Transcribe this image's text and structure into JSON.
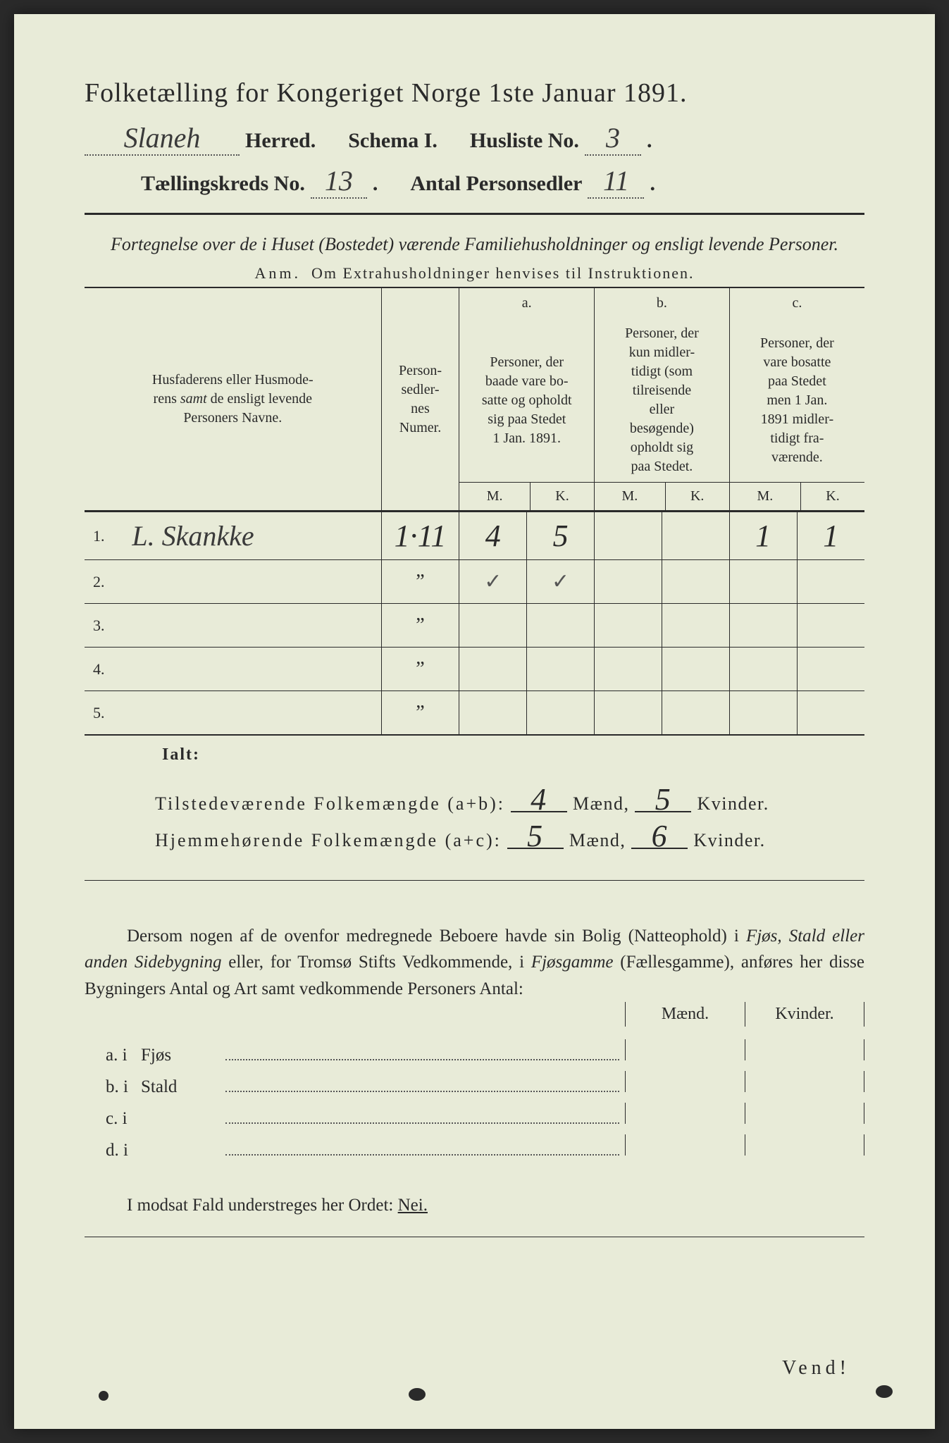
{
  "header": {
    "title": "Folketælling for Kongeriget Norge 1ste Januar 1891.",
    "herred_hw": "Slaneh",
    "herred_label": "Herred.",
    "schema_label": "Schema I.",
    "husliste_label": "Husliste No.",
    "husliste_no": "3",
    "kreds_label": "Tællingskreds No.",
    "kreds_no": "13",
    "antal_label": "Antal Personsedler",
    "antal_no": "11"
  },
  "intro": {
    "line": "Fortegnelse over de i Huset (Bostedet) værende Familiehusholdninger og ensligt levende Personer.",
    "anm_prefix": "Anm.",
    "anm": "Om Extrahusholdninger henvises til Instruktionen."
  },
  "table": {
    "col_name": "Husfaderens eller Husmoderens samt de ensligt levende Personers Navne.",
    "col_num": "Person-sedler-nes Numer.",
    "a_letter": "a.",
    "a_text": "Personer, der baade vare bo-satte og opholdt sig paa Stedet 1 Jan. 1891.",
    "b_letter": "b.",
    "b_text": "Personer, der kun midler-tidigt (som tilreisende eller besøgende) opholdt sig paa Stedet.",
    "c_letter": "c.",
    "c_text": "Personer, der vare bosatte paa Stedet men 1 Jan. 1891 midler-tidigt fra-værende.",
    "m": "M.",
    "k": "K.",
    "rows": [
      {
        "n": "1.",
        "name": "L. Skankke",
        "num": "1·11",
        "am": "4",
        "ak": "5",
        "bm": "",
        "bk": "",
        "cm": "1",
        "ck": "1"
      },
      {
        "n": "2.",
        "name": "",
        "num": "”",
        "am": "✓",
        "ak": "✓",
        "bm": "",
        "bk": "",
        "cm": "",
        "ck": ""
      },
      {
        "n": "3.",
        "name": "",
        "num": "”",
        "am": "",
        "ak": "",
        "bm": "",
        "bk": "",
        "cm": "",
        "ck": ""
      },
      {
        "n": "4.",
        "name": "",
        "num": "”",
        "am": "",
        "ak": "",
        "bm": "",
        "bk": "",
        "cm": "",
        "ck": ""
      },
      {
        "n": "5.",
        "name": "",
        "num": "”",
        "am": "",
        "ak": "",
        "bm": "",
        "bk": "",
        "cm": "",
        "ck": ""
      }
    ]
  },
  "totals": {
    "lalt": "Ialt:",
    "line1_label": "Tilstedeværende Folkemængde (a+b):",
    "line1_m": "4",
    "line1_k": "5",
    "line2_label": "Hjemmehørende Folkemængde (a+c):",
    "line2_m": "5",
    "line2_k": "6",
    "maend": "Mænd,",
    "kvinder": "Kvinder."
  },
  "paragraph": "Dersom nogen af de ovenfor medregnede Beboere havde sin Bolig (Natteophold) i Fjøs, Stald eller anden Sidebygning eller, for Tromsø Stifts Vedkommende, i Fjøsgamme (Fællesgamme), anføres her disse Bygningers Antal og Art samt vedkommende Personers Antal:",
  "mk": {
    "m": "Mænd.",
    "k": "Kvinder."
  },
  "buildings": [
    {
      "label": "a.  i",
      "type": "Fjøs"
    },
    {
      "label": "b.  i",
      "type": "Stald"
    },
    {
      "label": "c.  i",
      "type": ""
    },
    {
      "label": "d.  i",
      "type": ""
    }
  ],
  "nei_line": "I modsat Fald understreges her Ordet:",
  "nei": "Nei.",
  "vend": "Vend!",
  "colors": {
    "paper": "#e8ebd8",
    "ink": "#2a2a2a",
    "background": "#2a2a2a"
  }
}
